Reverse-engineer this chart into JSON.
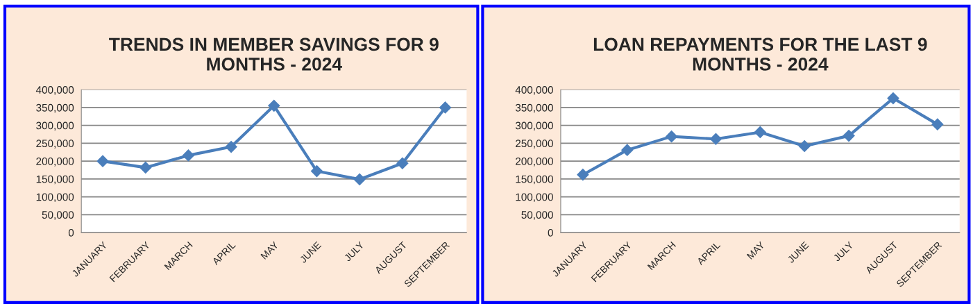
{
  "chart_data": [
    {
      "type": "line",
      "title": "TRENDS IN MEMBER SAVINGS FOR 9 MONTHS - 2024",
      "categories": [
        "JANUARY",
        "FEBRUARY",
        "MARCH",
        "APRIL",
        "MAY",
        "JUNE",
        "JULY",
        "AUGUST",
        "SEPTEMBER"
      ],
      "series": [
        {
          "color": "#4a7ebb",
          "values": [
            200000,
            182000,
            216000,
            240000,
            355000,
            172000,
            149000,
            194000,
            350000
          ]
        }
      ],
      "ylim": [
        0,
        400000
      ],
      "yticks": [
        0,
        {
          "value": 50000,
          "label": "50,000"
        },
        {
          "value": 100000,
          "label": "100,000"
        },
        {
          "value": 150000,
          "label": "150,000"
        },
        {
          "value": 200000,
          "label": "200,000"
        },
        {
          "value": 250000,
          "label": "250,000"
        },
        {
          "value": 300000,
          "label": "300,000"
        },
        {
          "value": 350000,
          "label": "350,000"
        },
        {
          "value": 400000,
          "label": "400,000"
        }
      ],
      "grid": "y",
      "legend": false,
      "marker": "diamond",
      "line_style": "solid"
    },
    {
      "type": "line",
      "title": "LOAN REPAYMENTS FOR THE LAST 9 MONTHS - 2024",
      "categories": [
        "JANUARY",
        "FEBRUARY",
        "MARCH",
        "APRIL",
        "MAY",
        "JUNE",
        "JULY",
        "AUGUST",
        "SEPTEMBER"
      ],
      "series": [
        {
          "color": "#4a7ebb",
          "values": [
            162000,
            231000,
            269000,
            262000,
            281000,
            242000,
            271000,
            376000,
            303000
          ]
        }
      ],
      "ylim": [
        0,
        400000
      ],
      "yticks": [
        0,
        {
          "value": 50000,
          "label": "50,000"
        },
        {
          "value": 100000,
          "label": "100,000"
        },
        {
          "value": 150000,
          "label": "150,000"
        },
        {
          "value": 200000,
          "label": "200,000"
        },
        {
          "value": 250000,
          "label": "250,000"
        },
        {
          "value": 300000,
          "label": "300,000"
        },
        {
          "value": 350000,
          "label": "350,000"
        },
        {
          "value": 400000,
          "label": "400,000"
        }
      ],
      "grid": "y",
      "legend": false,
      "marker": "diamond",
      "line_style": "solid"
    }
  ]
}
